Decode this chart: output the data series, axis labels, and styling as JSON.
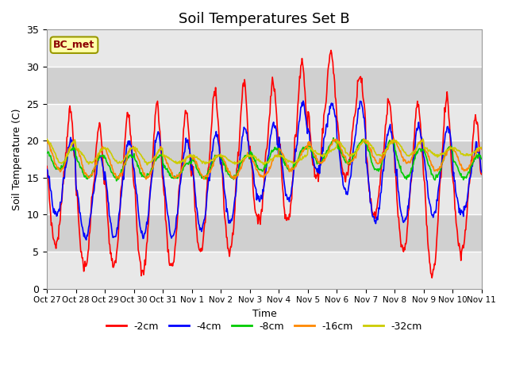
{
  "title": "Soil Temperatures Set B",
  "xlabel": "Time",
  "ylabel": "Soil Temperature (C)",
  "ylim": [
    0,
    35
  ],
  "annotation": "BC_met",
  "x_tick_labels": [
    "Oct 27",
    "Oct 28",
    "Oct 29",
    "Oct 30",
    "Oct 31",
    "Nov 1",
    "Nov 2",
    "Nov 3",
    "Nov 4",
    "Nov 5",
    "Nov 6",
    "Nov 7",
    "Nov 8",
    "Nov 9",
    "Nov 10",
    "Nov 11"
  ],
  "series_labels": [
    "-2cm",
    "-4cm",
    "-8cm",
    "-16cm",
    "-32cm"
  ],
  "series_colors": [
    "#ff0000",
    "#0000ff",
    "#00cc00",
    "#ff8800",
    "#cccc00"
  ],
  "background_color": "#ffffff",
  "plot_bg_color": "#e0e0e0",
  "grid_band_light": "#e8e8e8",
  "grid_band_dark": "#d0d0d0",
  "grid_line_color": "#ffffff",
  "title_fontsize": 13,
  "axis_fontsize": 9,
  "y_ticks": [
    0,
    5,
    10,
    15,
    20,
    25,
    30,
    35
  ]
}
